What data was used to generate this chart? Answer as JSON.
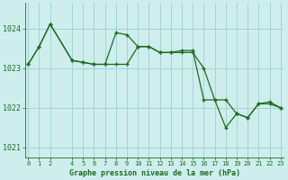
{
  "title": "Graphe pression niveau de la mer (hPa)",
  "background_color": "#cdeeed",
  "grid_color": "#9dcfcf",
  "line_color": "#1e6b1e",
  "xlim": [
    -0.3,
    23.3
  ],
  "ylim": [
    1020.75,
    1024.65
  ],
  "yticks": [
    1021,
    1022,
    1023,
    1024
  ],
  "xticks": [
    0,
    1,
    2,
    4,
    5,
    6,
    7,
    8,
    9,
    10,
    11,
    12,
    13,
    14,
    15,
    16,
    17,
    18,
    19,
    20,
    21,
    22,
    23
  ],
  "series1_x": [
    0,
    1,
    2,
    4,
    5,
    6,
    7,
    8,
    9,
    10,
    11,
    12,
    13,
    14,
    15,
    16,
    17,
    18,
    19,
    20,
    21,
    22,
    23
  ],
  "series1_y": [
    1023.1,
    1023.55,
    1024.12,
    1023.2,
    1023.15,
    1023.1,
    1023.1,
    1023.9,
    1023.85,
    1023.55,
    1023.55,
    1023.4,
    1023.4,
    1023.45,
    1023.45,
    1022.2,
    1022.2,
    1021.5,
    1021.85,
    1021.75,
    1022.1,
    1022.15,
    1022.0
  ],
  "series2_x": [
    0,
    1,
    2,
    4,
    5,
    6,
    7,
    8,
    9,
    10,
    11,
    12,
    13,
    14,
    15,
    16,
    17,
    18,
    19,
    20,
    21,
    22,
    23
  ],
  "series2_y": [
    1023.1,
    1023.55,
    1024.12,
    1023.2,
    1023.15,
    1023.1,
    1023.1,
    1023.1,
    1023.1,
    1023.55,
    1023.55,
    1023.4,
    1023.4,
    1023.4,
    1023.4,
    1023.0,
    1022.2,
    1022.2,
    1021.85,
    1021.75,
    1022.1,
    1022.1,
    1022.0
  ]
}
